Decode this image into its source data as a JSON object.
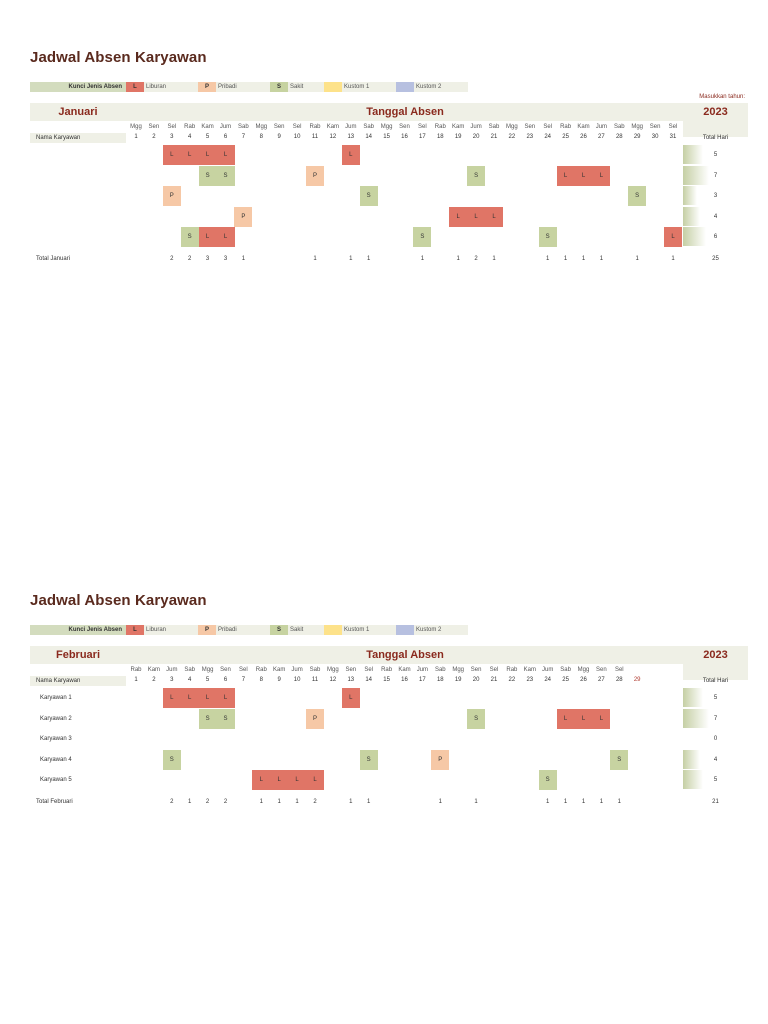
{
  "colors": {
    "L": "#e07566",
    "P": "#f6c8a6",
    "S": "#c7d3a1",
    "K1": "#fde28a",
    "K2": "#b7c0e0",
    "accent": "#8a2a1e",
    "band": "#eff0e6"
  },
  "legend": {
    "title": "Kunci Jenis Absen",
    "items": [
      {
        "code": "L",
        "label": "Liburan"
      },
      {
        "code": "P",
        "label": "Pribadi"
      },
      {
        "code": "S",
        "label": "Sakit"
      },
      {
        "code": "",
        "label": "Kustom 1"
      },
      {
        "code": "",
        "label": "Kustom 2"
      }
    ]
  },
  "sheets": [
    {
      "title": "Jadwal Absen Karyawan",
      "year_prompt": "Masukkan tahun:",
      "month": "Januari",
      "tanggal_label": "Tanggal Absen",
      "year": "2023",
      "name_header": "Nama Karyawan",
      "total_header": "Total Hari",
      "days_of_week": [
        "Mgg",
        "Sen",
        "Sel",
        "Rab",
        "Kam",
        "Jum",
        "Sab",
        "Mgg",
        "Sen",
        "Sel",
        "Rab",
        "Kam",
        "Jum",
        "Sab",
        "Mgg",
        "Sen",
        "Sel",
        "Rab",
        "Kam",
        "Jum",
        "Sab",
        "Mgg",
        "Sen",
        "Sel",
        "Rab",
        "Kam",
        "Jum",
        "Sab",
        "Mgg",
        "Sen",
        "Sel"
      ],
      "day_numbers": [
        "1",
        "2",
        "3",
        "4",
        "5",
        "6",
        "7",
        "8",
        "9",
        "10",
        "11",
        "12",
        "13",
        "14",
        "15",
        "16",
        "17",
        "18",
        "19",
        "20",
        "21",
        "22",
        "23",
        "24",
        "25",
        "26",
        "27",
        "28",
        "29",
        "30",
        "31"
      ],
      "invalid_day_index": -1,
      "employees": [
        {
          "name": "",
          "absences": {
            "3": "L",
            "4": "L",
            "5": "L",
            "6": "L",
            "13": "L"
          },
          "total": "5"
        },
        {
          "name": "",
          "absences": {
            "5": "S",
            "6": "S",
            "11": "P",
            "20": "S",
            "25": "L",
            "26": "L",
            "27": "L"
          },
          "total": "7"
        },
        {
          "name": "",
          "absences": {
            "3": "P",
            "14": "S",
            "29": "S"
          },
          "total": "3"
        },
        {
          "name": "",
          "absences": {
            "7": "P",
            "19": "L",
            "20": "L",
            "21": "L"
          },
          "total": "4"
        },
        {
          "name": "",
          "absences": {
            "4": "S",
            "5": "L",
            "6": "L",
            "17": "S",
            "24": "S",
            "31": "L"
          },
          "total": "6"
        }
      ],
      "totals_label": "Total Januari",
      "day_totals": {
        "3": "2",
        "4": "2",
        "5": "3",
        "6": "3",
        "7": "1",
        "11": "1",
        "13": "1",
        "14": "1",
        "17": "1",
        "19": "1",
        "20": "2",
        "21": "1",
        "24": "1",
        "25": "1",
        "26": "1",
        "27": "1",
        "29": "1",
        "31": "1"
      },
      "grand_total": "25"
    },
    {
      "title": "Jadwal Absen Karyawan",
      "year_prompt": "",
      "month": "Februari",
      "tanggal_label": "Tanggal Absen",
      "year": "2023",
      "name_header": "Nama Karyawan",
      "total_header": "Total Hari",
      "days_of_week": [
        "Rab",
        "Kam",
        "Jum",
        "Sab",
        "Mgg",
        "Sen",
        "Sel",
        "Rab",
        "Kam",
        "Jum",
        "Sab",
        "Mgg",
        "Sen",
        "Sel",
        "Rab",
        "Kam",
        "Jum",
        "Sab",
        "Mgg",
        "Sen",
        "Sel",
        "Rab",
        "Kam",
        "Jum",
        "Sab",
        "Mgg",
        "Sen",
        "Sel"
      ],
      "day_numbers": [
        "1",
        "2",
        "3",
        "4",
        "5",
        "6",
        "7",
        "8",
        "9",
        "10",
        "11",
        "12",
        "13",
        "14",
        "15",
        "16",
        "17",
        "18",
        "19",
        "20",
        "21",
        "22",
        "23",
        "24",
        "25",
        "26",
        "27",
        "28",
        "29"
      ],
      "invalid_day_index": 28,
      "employees": [
        {
          "name": "Karyawan 1",
          "absences": {
            "3": "L",
            "4": "L",
            "5": "L",
            "6": "L",
            "13": "L"
          },
          "total": "5"
        },
        {
          "name": "Karyawan 2",
          "absences": {
            "5": "S",
            "6": "S",
            "11": "P",
            "20": "S",
            "25": "L",
            "26": "L",
            "27": "L"
          },
          "total": "7"
        },
        {
          "name": "Karyawan 3",
          "absences": {},
          "total": "0"
        },
        {
          "name": "Karyawan 4",
          "absences": {
            "3": "S",
            "14": "S",
            "18": "P",
            "28": "S"
          },
          "total": "4"
        },
        {
          "name": "Karyawan 5",
          "absences": {
            "8": "L",
            "9": "L",
            "10": "L",
            "11": "L",
            "24": "S"
          },
          "total": "5"
        }
      ],
      "totals_label": "Total Februari",
      "day_totals": {
        "3": "2",
        "4": "1",
        "5": "2",
        "6": "2",
        "8": "1",
        "9": "1",
        "10": "1",
        "11": "2",
        "13": "1",
        "14": "1",
        "18": "1",
        "20": "1",
        "24": "1",
        "25": "1",
        "26": "1",
        "27": "1",
        "28": "1"
      },
      "grand_total": "21"
    }
  ]
}
